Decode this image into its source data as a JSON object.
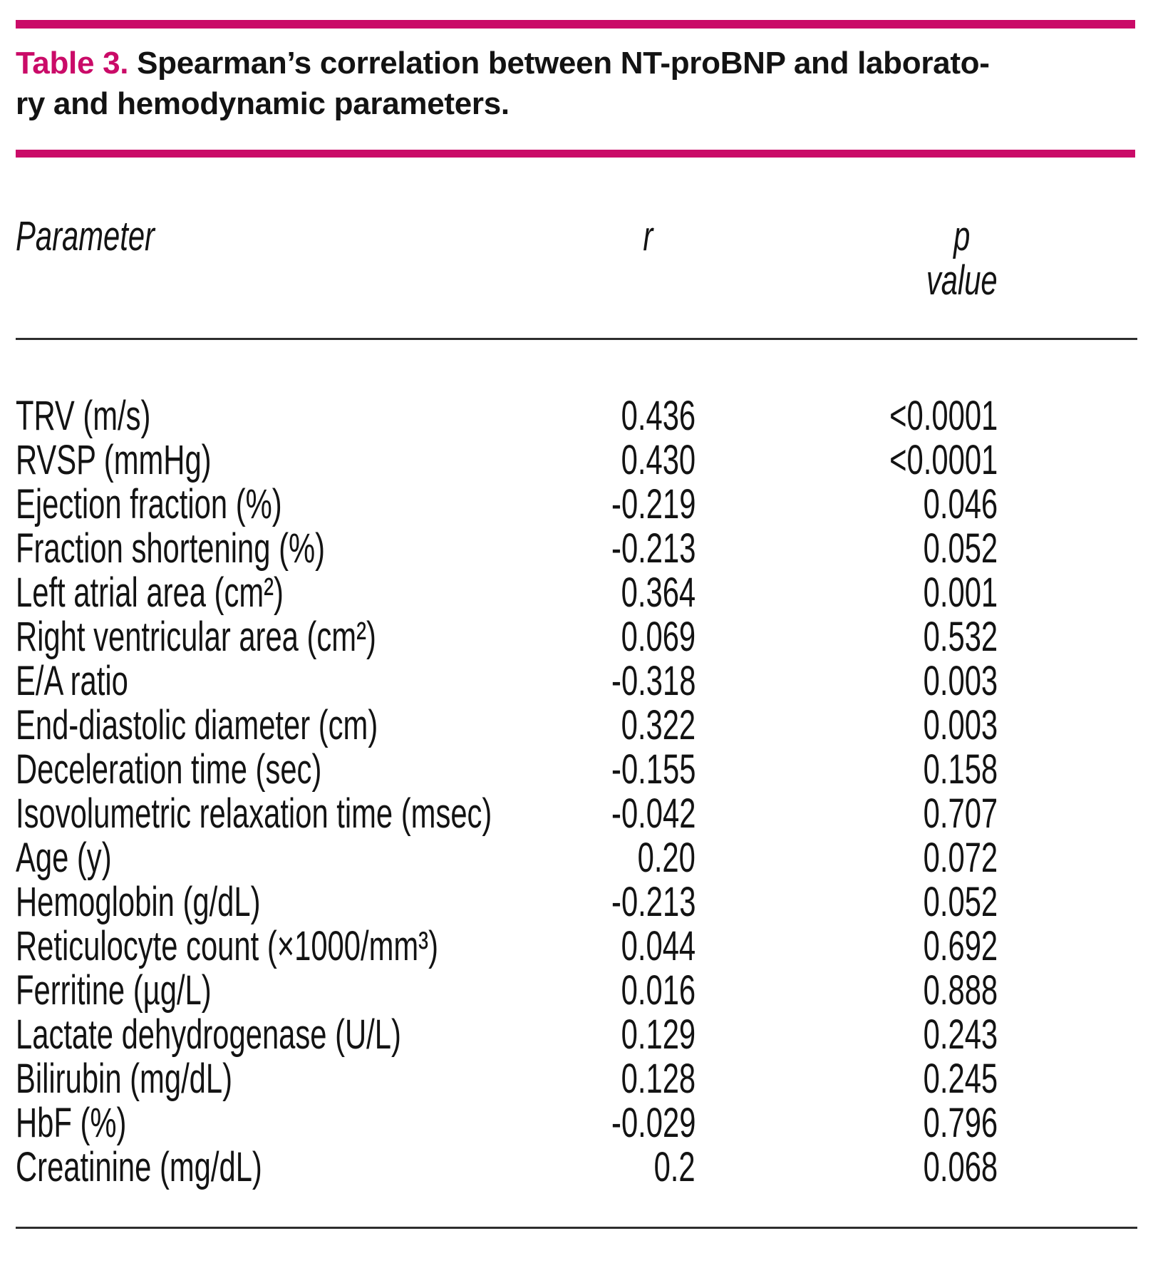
{
  "colors": {
    "accent": "#ca0b68",
    "rule": "#2e2e2e",
    "text": "#131313"
  },
  "title": {
    "label": "Table 3.",
    "line1": "Spearman’s correlation between NT-proBNP and laborato-",
    "line2": "ry and hemodynamic parameters."
  },
  "table": {
    "header": {
      "parameter": "Parameter",
      "r": "r",
      "p": "p",
      "p_sub": "value"
    },
    "rows": [
      {
        "parameter": "TRV (m/s)",
        "r": "0.436",
        "p": "<0.0001"
      },
      {
        "parameter": "RVSP (mmHg)",
        "r": "0.430",
        "p": "<0.0001"
      },
      {
        "parameter": "Ejection fraction (%)",
        "r": "-0.219",
        "p": "0.046"
      },
      {
        "parameter": "Fraction shortening (%)",
        "r": "-0.213",
        "p": "0.052"
      },
      {
        "parameter": "Left atrial area (cm²)",
        "r": "0.364",
        "p": "0.001"
      },
      {
        "parameter": "Right ventricular area (cm²)",
        "r": "0.069",
        "p": "0.532"
      },
      {
        "parameter": "E/A ratio",
        "r": "-0.318",
        "p": "0.003"
      },
      {
        "parameter": "End-diastolic diameter (cm)",
        "r": "0.322",
        "p": "0.003"
      },
      {
        "parameter": "Deceleration time (sec)",
        "r": "-0.155",
        "p": "0.158"
      },
      {
        "parameter": "Isovolumetric relaxation time (msec)",
        "r": "-0.042",
        "p": "0.707"
      },
      {
        "parameter": "Age (y)",
        "r": "0.20",
        "p": "0.072"
      },
      {
        "parameter": "Hemoglobin (g/dL)",
        "r": "-0.213",
        "p": "0.052"
      },
      {
        "parameter": "Reticulocyte count (×1000/mm³)",
        "r": "0.044",
        "p": "0.692"
      },
      {
        "parameter": "Ferritine (µg/L)",
        "r": "0.016",
        "p": "0.888"
      },
      {
        "parameter": "Lactate dehydrogenase (U/L)",
        "r": "0.129",
        "p": "0.243"
      },
      {
        "parameter": "Bilirubin (mg/dL)",
        "r": "0.128",
        "p": "0.245"
      },
      {
        "parameter": "HbF (%)",
        "r": "-0.029",
        "p": "0.796"
      },
      {
        "parameter": "Creatinine (mg/dL)",
        "r": "0.2",
        "p": "0.068"
      }
    ]
  }
}
